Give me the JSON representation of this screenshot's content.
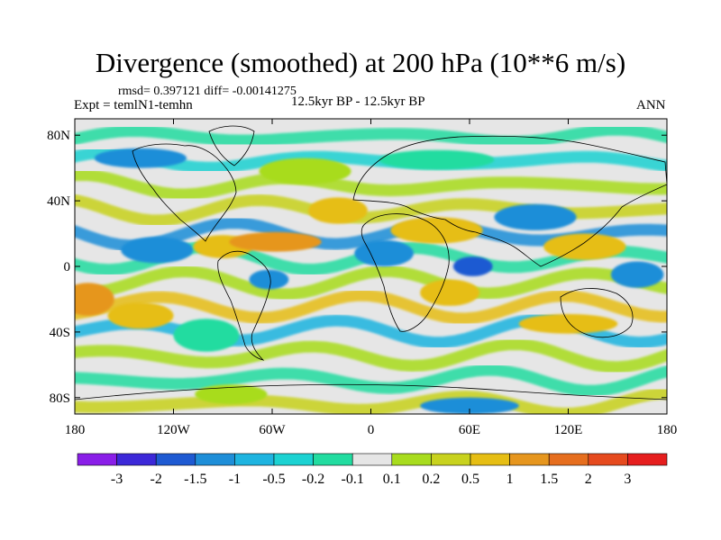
{
  "chart_data": {
    "type": "heatmap",
    "title": "Divergence (smoothed) at 200 hPa (10**6 m/s)",
    "stats_label": "rmsd= 0.397121 diff= -0.00141275",
    "left_label": "Expt = temlN1-temhn",
    "center_label": "12.5kyr BP - 12.5kyr BP",
    "right_label": "ANN",
    "x_axis": {
      "range": [
        -180,
        180
      ],
      "ticks": [
        {
          "value": -180,
          "label": "180"
        },
        {
          "value": -120,
          "label": "120W"
        },
        {
          "value": -60,
          "label": "60W"
        },
        {
          "value": 0,
          "label": "0"
        },
        {
          "value": 60,
          "label": "60E"
        },
        {
          "value": 120,
          "label": "120E"
        },
        {
          "value": 180,
          "label": "180"
        }
      ]
    },
    "y_axis": {
      "range": [
        -90,
        90
      ],
      "ticks": [
        {
          "value": 80,
          "label": "80N"
        },
        {
          "value": 40,
          "label": "40N"
        },
        {
          "value": 0,
          "label": "0"
        },
        {
          "value": -40,
          "label": "40S"
        },
        {
          "value": -80,
          "label": "80S"
        }
      ]
    },
    "colorbar": {
      "colors": [
        "#8a1ee8",
        "#3c28d8",
        "#1e5ad2",
        "#1e8ed8",
        "#1eb4e0",
        "#1cd2d2",
        "#22dca0",
        "#e6e6e6",
        "#a8dc1e",
        "#c8d21e",
        "#e6be14",
        "#e6961e",
        "#e66e1e",
        "#e64a1e",
        "#e61e1e"
      ],
      "labels": [
        "-3",
        "-2",
        "-1.5",
        "-1",
        "-0.5",
        "-0.2",
        "-0.1",
        "0.1",
        "0.2",
        "0.5",
        "1",
        "1.5",
        "2",
        "3"
      ]
    },
    "regions": [
      {
        "lon": -178,
        "lat": -20,
        "rx": 8,
        "ry": 5,
        "bin": 13
      },
      {
        "lon": -172,
        "lat": -20,
        "rx": 16,
        "ry": 10,
        "bin": 11
      },
      {
        "lon": -130,
        "lat": 10,
        "rx": 22,
        "ry": 8,
        "bin": 3
      },
      {
        "lon": -90,
        "lat": 12,
        "rx": 18,
        "ry": 7,
        "bin": 10
      },
      {
        "lon": -58,
        "lat": 15,
        "rx": 28,
        "ry": 6,
        "bin": 11
      },
      {
        "lon": -62,
        "lat": -8,
        "rx": 12,
        "ry": 6,
        "bin": 3
      },
      {
        "lon": -140,
        "lat": -30,
        "rx": 20,
        "ry": 8,
        "bin": 10
      },
      {
        "lon": -100,
        "lat": -42,
        "rx": 20,
        "ry": 10,
        "bin": 6
      },
      {
        "lon": -20,
        "lat": 34,
        "rx": 18,
        "ry": 8,
        "bin": 10
      },
      {
        "lon": 8,
        "lat": 8,
        "rx": 18,
        "ry": 8,
        "bin": 3
      },
      {
        "lon": 40,
        "lat": 22,
        "rx": 28,
        "ry": 8,
        "bin": 10
      },
      {
        "lon": 61,
        "lat": 0,
        "rx": 4,
        "ry": 3,
        "bin": 0
      },
      {
        "lon": 62,
        "lat": 0,
        "rx": 12,
        "ry": 6,
        "bin": 2
      },
      {
        "lon": 48,
        "lat": -16,
        "rx": 18,
        "ry": 8,
        "bin": 10
      },
      {
        "lon": 100,
        "lat": 30,
        "rx": 25,
        "ry": 8,
        "bin": 3
      },
      {
        "lon": 130,
        "lat": 12,
        "rx": 25,
        "ry": 8,
        "bin": 10
      },
      {
        "lon": 162,
        "lat": -5,
        "rx": 16,
        "ry": 8,
        "bin": 3
      },
      {
        "lon": 120,
        "lat": -35,
        "rx": 30,
        "ry": 6,
        "bin": 10
      },
      {
        "lon": -40,
        "lat": 58,
        "rx": 28,
        "ry": 8,
        "bin": 8
      },
      {
        "lon": 40,
        "lat": 65,
        "rx": 35,
        "ry": 6,
        "bin": 6
      },
      {
        "lon": -140,
        "lat": 66,
        "rx": 28,
        "ry": 6,
        "bin": 3
      },
      {
        "lon": 60,
        "lat": -85,
        "rx": 30,
        "ry": 5,
        "bin": 3
      },
      {
        "lon": -85,
        "lat": -78,
        "rx": 22,
        "ry": 6,
        "bin": 8
      }
    ]
  }
}
